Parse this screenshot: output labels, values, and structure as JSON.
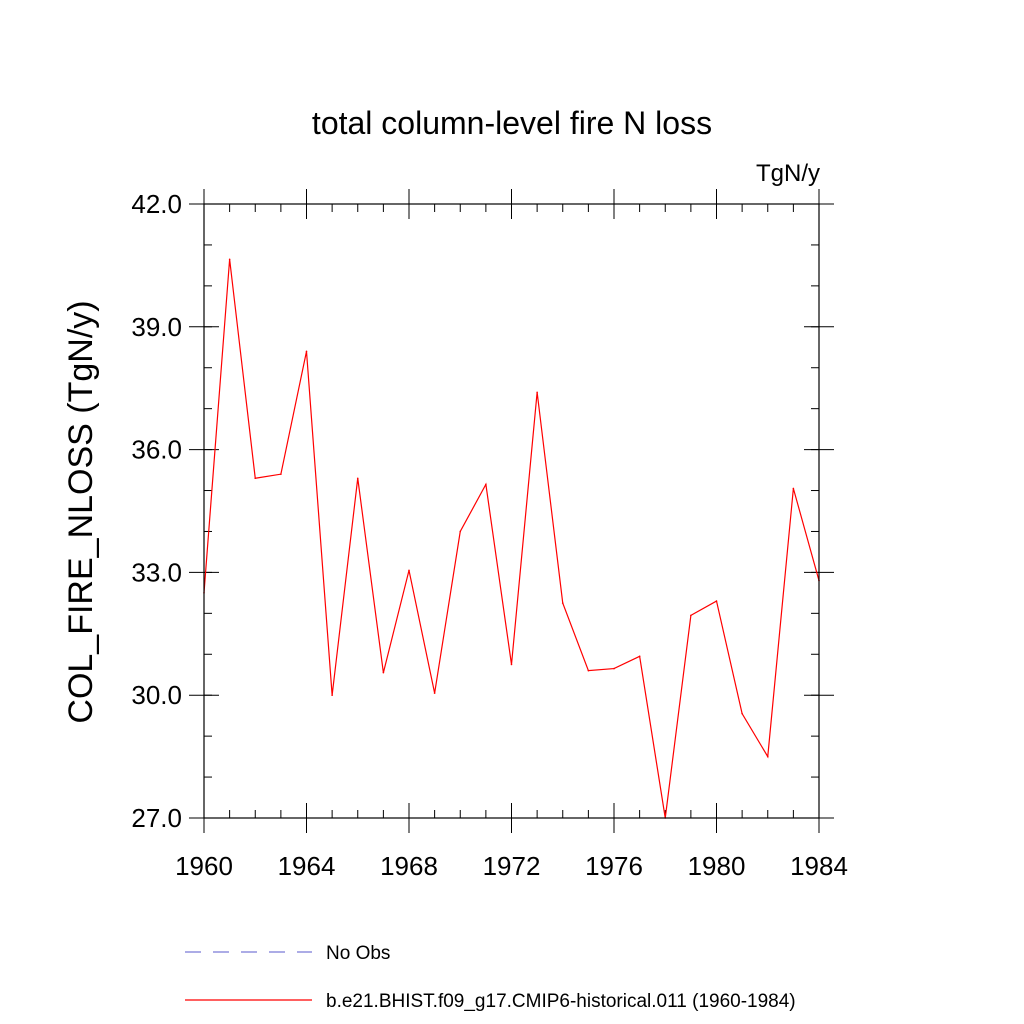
{
  "chart_data": {
    "type": "line",
    "title": "total column-level fire N loss",
    "units_label": "TgN/y",
    "xlabel": "",
    "ylabel": "COL_FIRE_NLOSS  (TgN/y)",
    "xlim": [
      1960,
      1984
    ],
    "ylim": [
      27.0,
      42.0
    ],
    "x_ticks": [
      1960,
      1964,
      1968,
      1972,
      1976,
      1980,
      1984
    ],
    "x_tick_labels": [
      "1960",
      "1964",
      "1968",
      "1972",
      "1976",
      "1980",
      "1984"
    ],
    "y_ticks": [
      27.0,
      30.0,
      33.0,
      36.0,
      39.0,
      42.0
    ],
    "y_tick_labels": [
      "27.0",
      "30.0",
      "33.0",
      "36.0",
      "39.0",
      "42.0"
    ],
    "x_minor_step": 1,
    "y_minor_step": 1.0,
    "grid": false,
    "legend_position": "bottom",
    "series": [
      {
        "name": "No Obs",
        "color": "#7b7bd6",
        "style": "dashed",
        "x": [],
        "values": []
      },
      {
        "name": "b.e21.BHIST.f09_g17.CMIP6-historical.011 (1960-1984)",
        "color": "#ff0000",
        "style": "solid",
        "x": [
          1960,
          1961,
          1962,
          1963,
          1964,
          1965,
          1966,
          1967,
          1968,
          1969,
          1970,
          1971,
          1972,
          1973,
          1974,
          1975,
          1976,
          1977,
          1978,
          1979,
          1980,
          1981,
          1982,
          1983,
          1984
        ],
        "values": [
          32.5,
          40.65,
          35.3,
          35.4,
          38.4,
          30.0,
          35.3,
          30.55,
          33.05,
          30.05,
          34.0,
          35.15,
          30.75,
          37.4,
          32.25,
          30.6,
          30.65,
          30.95,
          27.0,
          31.95,
          32.3,
          29.55,
          28.5,
          35.05,
          32.8
        ]
      }
    ]
  }
}
